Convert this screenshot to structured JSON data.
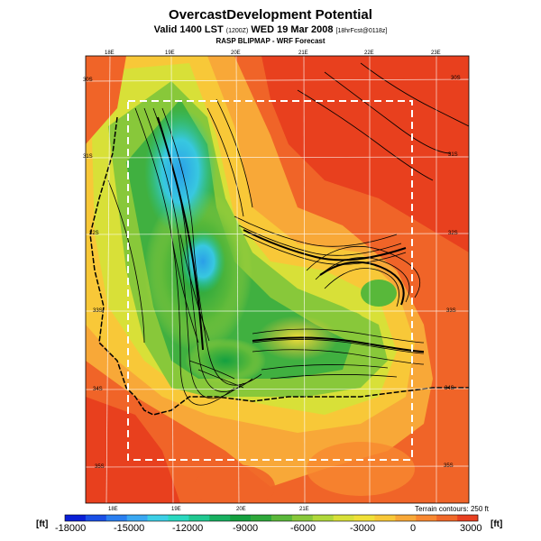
{
  "title": "OvercastDevelopment Potential",
  "subtitle_main": "Valid 1400 LST",
  "subtitle_paren": "(1200Z)",
  "subtitle_date": "WED 19 Mar 2008",
  "subtitle_fcst": "[18hrFcst@0118z]",
  "model_line": "RASP BLIPMAP - WRF Forecast",
  "terrain_note": "Terrain contours: 250 ft",
  "unit_left": "[ft]",
  "unit_right": "[ft]",
  "lon_labels_top": [
    "18E",
    "19E",
    "20E",
    "21E",
    "22E",
    "23E"
  ],
  "lon_labels_bottom": [
    "18E",
    "19E",
    "20E",
    "21E"
  ],
  "lat_labels_left": [
    "30S",
    "31S",
    "32S",
    "33S",
    "34S",
    "35S"
  ],
  "lat_labels_right": [
    "30S",
    "31S",
    "32S",
    "33S",
    "34S",
    "35S"
  ],
  "colorbar_ticks": [
    "-18000",
    "-15000",
    "-12000",
    "-9000",
    "-6000",
    "-3000",
    "0",
    "3000"
  ],
  "colorbar_colors": [
    "#0a1fd6",
    "#1a4fe6",
    "#2a7ff0",
    "#3aa8f2",
    "#3ccfe6",
    "#2ad8c0",
    "#20c890",
    "#18b060",
    "#14a040",
    "#2ea83a",
    "#5ab83a",
    "#88c83a",
    "#b0d83a",
    "#d8e038",
    "#f0e038",
    "#f8c838",
    "#f8a838",
    "#f88830",
    "#f06828",
    "#e84020"
  ],
  "colors": {
    "warm": "#f06428",
    "hot": "#e8401e",
    "mid": "#f8c030",
    "green": "#2aa040",
    "cyan": "#38c8e0"
  }
}
